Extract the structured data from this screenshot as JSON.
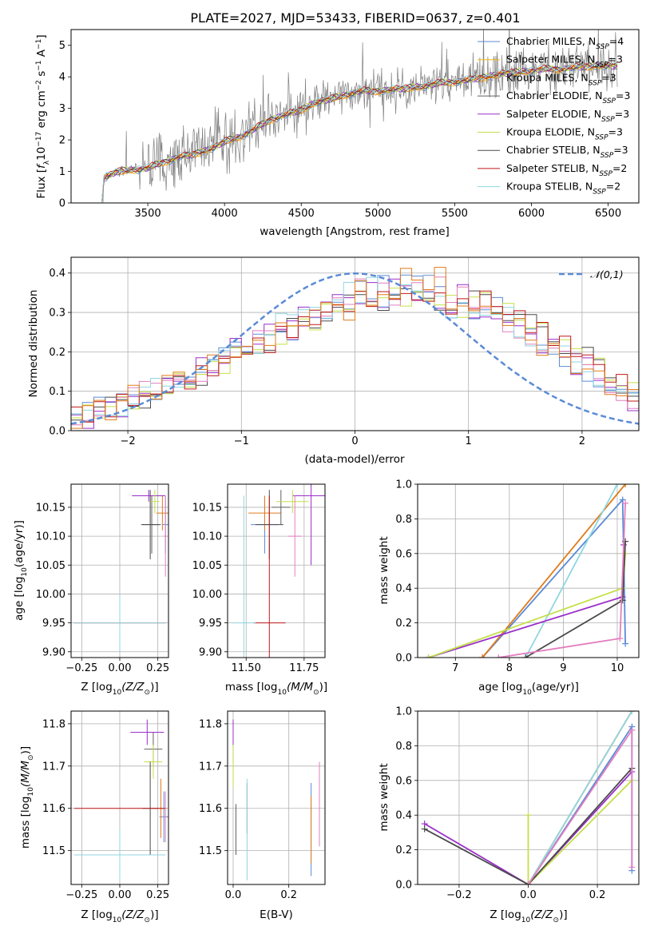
{
  "title": "PLATE=2027, MJD=53433, FIBERID=0637, z=0.401",
  "colors": {
    "chabrier_miles": "#5b8bd6",
    "salpeter_miles": "#f2b50c",
    "kroupa_miles": "#e07b1a",
    "chabrier_elodie": "#606060",
    "salpeter_elodie": "#9a2fc9",
    "kroupa_elodie": "#c4e04a",
    "chabrier_stelib": "#4a4a4a",
    "salpeter_stelib": "#c01818",
    "kroupa_stelib": "#8fd6e0",
    "normal_curve": "#5b8bd6",
    "pink": "#e27fbf",
    "data_gray": "#808080"
  },
  "chart_data": [
    {
      "id": "spectrum",
      "type": "line",
      "xlabel": "wavelength [Angstrom, rest frame]",
      "ylabel_parts": [
        "Flux [",
        "f",
        "λ",
        "10",
        "−17",
        " erg cm",
        "−2",
        " s",
        "−1",
        " A",
        "−1",
        "]"
      ],
      "xlim": [
        3000,
        6700
      ],
      "ylim": [
        0,
        5.5
      ],
      "xticks": [
        "3500",
        "4000",
        "4500",
        "5000",
        "5500",
        "6000",
        "6500"
      ],
      "yticks": [
        "0",
        "1",
        "2",
        "3",
        "4",
        "5"
      ],
      "legend_position": "right",
      "legend": [
        {
          "name": "Chabrier MILES, N",
          "sub": "SSP",
          "tail": "=4",
          "color": "#5b8bd6"
        },
        {
          "name": "Salpeter MILES, N",
          "sub": "SSP",
          "tail": "=3",
          "color": "#f2b50c"
        },
        {
          "name": "Kroupa MILES, N",
          "sub": "SSP",
          "tail": "=3",
          "color": "#e07b1a"
        },
        {
          "name": "Chabrier ELODIE, N",
          "sub": "SSP",
          "tail": "=3",
          "color": "#606060"
        },
        {
          "name": "Salpeter ELODIE, N",
          "sub": "SSP",
          "tail": "=3",
          "color": "#9a2fc9"
        },
        {
          "name": "Kroupa ELODIE, N",
          "sub": "SSP",
          "tail": "=3",
          "color": "#c4e04a"
        },
        {
          "name": "Chabrier STELIB, N",
          "sub": "SSP",
          "tail": "=3",
          "color": "#4a4a4a"
        },
        {
          "name": "Salpeter STELIB, N",
          "sub": "SSP",
          "tail": "=2",
          "color": "#c01818"
        },
        {
          "name": "Kroupa STELIB, N",
          "sub": "SSP",
          "tail": "=2",
          "color": "#8fd6e0"
        }
      ],
      "model_continuum": {
        "x": [
          3200,
          3300,
          3400,
          3500,
          3600,
          3700,
          3800,
          3900,
          3950,
          4000,
          4100,
          4200,
          4300,
          4400,
          4500,
          4600,
          4700,
          4800,
          4900,
          5000,
          5100,
          5200,
          5300,
          5400,
          5500,
          5600,
          5700,
          5800,
          5900,
          6000,
          6100,
          6200,
          6300,
          6400,
          6500
        ],
        "y": [
          0.75,
          1.0,
          1.05,
          1.1,
          1.3,
          1.45,
          1.55,
          1.7,
          1.8,
          1.95,
          2.1,
          2.35,
          2.65,
          2.8,
          2.95,
          3.2,
          3.3,
          3.45,
          3.55,
          3.55,
          3.6,
          3.65,
          3.7,
          3.8,
          3.85,
          3.9,
          4.0,
          4.1,
          4.15,
          4.2,
          4.25,
          4.25,
          4.3,
          4.35,
          4.35
        ]
      }
    },
    {
      "id": "residuals",
      "type": "histogram",
      "xlabel": "(data-model)/error",
      "ylabel": "Normed distribution",
      "xlim": [
        -2.5,
        2.5
      ],
      "ylim": [
        0,
        0.44
      ],
      "xticks": [
        "−2",
        "−1",
        "0",
        "1",
        "2"
      ],
      "yticks": [
        "0.0",
        "0.1",
        "0.2",
        "0.3",
        "0.4"
      ],
      "legend_label": "𝒩(0,1)",
      "legend_position": "top-right",
      "bins_start": -2.5,
      "bin_width": 0.1,
      "series_heights": [
        [
          0.05,
          0.04,
          0.05,
          0.06,
          0.07,
          0.08,
          0.08,
          0.09,
          0.11,
          0.12,
          0.13,
          0.14,
          0.16,
          0.17,
          0.19,
          0.2,
          0.22,
          0.22,
          0.24,
          0.26,
          0.27,
          0.28,
          0.3,
          0.31,
          0.32,
          0.33,
          0.34,
          0.33,
          0.35,
          0.34,
          0.33,
          0.34,
          0.33,
          0.32,
          0.31,
          0.33,
          0.34,
          0.32,
          0.3,
          0.29,
          0.27,
          0.25,
          0.24,
          0.22,
          0.2,
          0.19,
          0.16,
          0.14,
          0.12,
          0.1
        ],
        [
          0.03,
          0.05,
          0.06,
          0.05,
          0.08,
          0.09,
          0.1,
          0.1,
          0.12,
          0.14,
          0.15,
          0.15,
          0.17,
          0.19,
          0.2,
          0.19,
          0.23,
          0.24,
          0.26,
          0.25,
          0.29,
          0.31,
          0.3,
          0.33,
          0.3,
          0.36,
          0.31,
          0.37,
          0.33,
          0.39,
          0.4,
          0.37,
          0.39,
          0.31,
          0.34,
          0.29,
          0.3,
          0.32,
          0.27,
          0.26,
          0.24,
          0.21,
          0.2,
          0.18,
          0.17,
          0.15,
          0.13,
          0.11,
          0.1,
          0.08
        ],
        [
          0.02,
          0.03,
          0.04,
          0.06,
          0.06,
          0.07,
          0.09,
          0.11,
          0.11,
          0.13,
          0.14,
          0.16,
          0.16,
          0.18,
          0.21,
          0.22,
          0.22,
          0.25,
          0.28,
          0.27,
          0.3,
          0.33,
          0.31,
          0.34,
          0.36,
          0.3,
          0.38,
          0.33,
          0.36,
          0.38,
          0.34,
          0.37,
          0.33,
          0.3,
          0.35,
          0.31,
          0.28,
          0.27,
          0.3,
          0.25,
          0.24,
          0.22,
          0.21,
          0.19,
          0.16,
          0.16,
          0.14,
          0.12,
          0.09,
          0.07
        ]
      ],
      "normal": {
        "mu": 0,
        "sigma": 1
      }
    },
    {
      "id": "age-vs-Z",
      "type": "errorbar",
      "xlabel_parts": [
        "Z [log",
        "10",
        "(Z/Z",
        "⊙",
        ")]"
      ],
      "ylabel_parts": [
        "age  [log",
        "10",
        "(age/yr)]"
      ],
      "xlim": [
        -0.32,
        0.32
      ],
      "ylim": [
        9.89,
        10.19
      ],
      "xticks": [
        "−0.25",
        "0.00",
        "0.25"
      ],
      "yticks": [
        "9.90",
        "9.95",
        "10.00",
        "10.05",
        "10.10",
        "10.15"
      ],
      "points": [
        {
          "x": 0.3,
          "y": 10.12,
          "xerr": 0.02,
          "yerr": 0.05,
          "color": "#5b8bd6"
        },
        {
          "x": 0.28,
          "y": 10.14,
          "xerr": 0.04,
          "yerr": 0.03,
          "color": "#e07b1a"
        },
        {
          "x": 0.21,
          "y": 10.12,
          "xerr": 0.06,
          "yerr": 0.05,
          "color": "#606060"
        },
        {
          "x": 0.19,
          "y": 10.17,
          "xerr": 0.11,
          "yerr": 0.01,
          "color": "#9a2fc9"
        },
        {
          "x": 0.23,
          "y": 10.16,
          "xerr": 0.03,
          "yerr": 0.02,
          "color": "#c4e04a"
        },
        {
          "x": 0.2,
          "y": 10.12,
          "xerr": 0.06,
          "yerr": 0.06,
          "color": "#4a4a4a"
        },
        {
          "x": 0.0,
          "y": 9.95,
          "xerr": 0.3,
          "yerr": 0.0,
          "color": "#c01818"
        },
        {
          "x": 0.0,
          "y": 9.95,
          "xerr": 0.3,
          "yerr": 0.05,
          "color": "#8fd6e0"
        },
        {
          "x": 0.3,
          "y": 10.1,
          "xerr": 0.01,
          "yerr": 0.07,
          "color": "#e27fbf"
        }
      ]
    },
    {
      "id": "age-vs-mass",
      "type": "errorbar",
      "xlabel_parts": [
        "mass [log",
        "10",
        "(M/M",
        "⊙",
        ")]"
      ],
      "xlim": [
        11.42,
        11.84
      ],
      "ylim": [
        9.89,
        10.19
      ],
      "xticks": [
        "11.50",
        "11.75"
      ],
      "yticks": [
        "9.90",
        "9.95",
        "10.00",
        "10.05",
        "10.10",
        "10.15"
      ],
      "points": [
        {
          "x": 11.58,
          "y": 10.12,
          "xerr": 0.06,
          "yerr": 0.05,
          "color": "#5b8bd6"
        },
        {
          "x": 11.58,
          "y": 10.14,
          "xerr": 0.07,
          "yerr": 0.03,
          "color": "#e07b1a"
        },
        {
          "x": 11.65,
          "y": 10.15,
          "xerr": 0.04,
          "yerr": 0.03,
          "color": "#606060"
        },
        {
          "x": 11.78,
          "y": 10.17,
          "xerr": 0.08,
          "yerr": 0.12,
          "color": "#9a2fc9"
        },
        {
          "x": 11.7,
          "y": 10.16,
          "xerr": 0.07,
          "yerr": 0.02,
          "color": "#c4e04a"
        },
        {
          "x": 11.6,
          "y": 10.12,
          "xerr": 0.06,
          "yerr": 0.06,
          "color": "#4a4a4a"
        },
        {
          "x": 11.6,
          "y": 9.95,
          "xerr": 0.07,
          "yerr": 0.22,
          "color": "#c01818"
        },
        {
          "x": 11.49,
          "y": 9.95,
          "xerr": 0.05,
          "yerr": 0.22,
          "color": "#8fd6e0"
        },
        {
          "x": 11.71,
          "y": 10.1,
          "xerr": 0.03,
          "yerr": 0.07,
          "color": "#e27fbf"
        }
      ]
    },
    {
      "id": "massweight-vs-age",
      "type": "line",
      "xlabel_parts": [
        "age  [log",
        "10",
        "(age/yr)]"
      ],
      "ylabel": "mass weight",
      "xlim": [
        6.3,
        10.4
      ],
      "ylim": [
        0,
        1
      ],
      "xticks": [
        "7",
        "8",
        "9",
        "10"
      ],
      "yticks": [
        "0.0",
        "0.2",
        "0.4",
        "0.6",
        "0.8",
        "1.0"
      ],
      "series": [
        {
          "color": "#5b8bd6",
          "x": [
            7.5,
            10.1,
            10.15
          ],
          "y": [
            0.0,
            0.91,
            0.08
          ]
        },
        {
          "color": "#e07b1a",
          "x": [
            7.5,
            10.15
          ],
          "y": [
            0.0,
            1.0
          ]
        },
        {
          "color": "#8fd6e0",
          "x": [
            8.3,
            10.0
          ],
          "y": [
            0.0,
            1.0
          ]
        },
        {
          "color": "#9a2fc9",
          "x": [
            6.5,
            10.1,
            10.12
          ],
          "y": [
            0.0,
            0.35,
            0.65
          ]
        },
        {
          "color": "#c4e04a",
          "x": [
            6.5,
            10.1,
            10.15
          ],
          "y": [
            0.0,
            0.4,
            0.6
          ]
        },
        {
          "color": "#4a4a4a",
          "x": [
            8.3,
            10.1,
            10.15
          ],
          "y": [
            0.0,
            0.33,
            0.67
          ]
        },
        {
          "color": "#e27fbf",
          "x": [
            7.8,
            10.05,
            10.15
          ],
          "y": [
            0.0,
            0.11,
            0.89
          ]
        }
      ]
    },
    {
      "id": "mass-vs-Z",
      "type": "errorbar",
      "xlabel_parts": [
        "Z [log",
        "10",
        "(Z/Z",
        "⊙",
        ")]"
      ],
      "ylabel_parts": [
        "mass [log",
        "10",
        "(M/M",
        "⊙",
        ")]"
      ],
      "xlim": [
        -0.32,
        0.32
      ],
      "ylim": [
        11.42,
        11.83
      ],
      "xticks": [
        "−0.25",
        "0.00",
        "0.25"
      ],
      "yticks": [
        "11.5",
        "11.6",
        "11.7",
        "11.8"
      ],
      "points": [
        {
          "x": 0.29,
          "y": 11.58,
          "xerr": 0.03,
          "yerr": 0.06,
          "color": "#5b8bd6"
        },
        {
          "x": 0.27,
          "y": 11.6,
          "xerr": 0.04,
          "yerr": 0.07,
          "color": "#e07b1a"
        },
        {
          "x": 0.22,
          "y": 11.74,
          "xerr": 0.06,
          "yerr": 0.04,
          "color": "#606060"
        },
        {
          "x": 0.18,
          "y": 11.78,
          "xerr": 0.11,
          "yerr": 0.03,
          "color": "#9a2fc9"
        },
        {
          "x": 0.22,
          "y": 11.71,
          "xerr": 0.06,
          "yerr": 0.04,
          "color": "#c4e04a"
        },
        {
          "x": 0.2,
          "y": 11.6,
          "xerr": 0.05,
          "yerr": 0.11,
          "color": "#4a4a4a"
        },
        {
          "x": 0.0,
          "y": 11.6,
          "xerr": 0.3,
          "yerr": 0.0,
          "color": "#c01818"
        },
        {
          "x": 0.0,
          "y": 11.49,
          "xerr": 0.3,
          "yerr": 0.06,
          "color": "#8fd6e0"
        },
        {
          "x": 0.3,
          "y": 11.58,
          "xerr": 0.01,
          "yerr": 0.06,
          "color": "#e27fbf"
        }
      ]
    },
    {
      "id": "mass-vs-EBV",
      "type": "errorbar",
      "xlabel": "E(B-V)",
      "xlim": [
        -0.02,
        0.33
      ],
      "ylim": [
        11.42,
        11.83
      ],
      "xticks": [
        "0.0",
        "0.2"
      ],
      "yticks": [
        "11.5",
        "11.6",
        "11.7",
        "11.8"
      ],
      "points": [
        {
          "x": 0.28,
          "y": 11.55,
          "xerr": 0.0,
          "yerr": 0.11,
          "color": "#5b8bd6"
        },
        {
          "x": 0.28,
          "y": 11.55,
          "xerr": 0.0,
          "yerr": 0.08,
          "color": "#e07b1a"
        },
        {
          "x": 0.01,
          "y": 11.55,
          "xerr": 0.0,
          "yerr": 0.06,
          "color": "#606060"
        },
        {
          "x": 0.0,
          "y": 11.76,
          "xerr": 0.0,
          "yerr": 0.05,
          "color": "#9a2fc9"
        },
        {
          "x": 0.0,
          "y": 11.7,
          "xerr": 0.0,
          "yerr": 0.05,
          "color": "#c4e04a"
        },
        {
          "x": 0.05,
          "y": 11.6,
          "xerr": 0.0,
          "yerr": 0.06,
          "color": "#4a4a4a"
        },
        {
          "x": 0.05,
          "y": 11.55,
          "xerr": 0.0,
          "yerr": 0.12,
          "color": "#8fd6e0"
        },
        {
          "x": 0.31,
          "y": 11.61,
          "xerr": 0.0,
          "yerr": 0.1,
          "color": "#e27fbf"
        }
      ]
    },
    {
      "id": "massweight-vs-Z",
      "type": "line",
      "xlabel_parts": [
        "Z [log",
        "10",
        "(Z/Z",
        "⊙",
        ")]"
      ],
      "ylabel": "mass weight",
      "xlim": [
        -0.32,
        0.32
      ],
      "ylim": [
        0,
        1
      ],
      "xticks": [
        "−0.2",
        "0.0",
        "0.2"
      ],
      "yticks": [
        "0.0",
        "0.2",
        "0.4",
        "0.6",
        "0.8",
        "1.0"
      ],
      "series": [
        {
          "color": "#5b8bd6",
          "x": [
            0.0,
            0.3,
            0.3
          ],
          "y": [
            0.0,
            0.91,
            0.08
          ]
        },
        {
          "color": "#e07b1a",
          "x": [
            0.0,
            0.3
          ],
          "y": [
            0.0,
            1.0
          ]
        },
        {
          "color": "#8fd6e0",
          "x": [
            0.0,
            0.3
          ],
          "y": [
            0.0,
            1.0
          ]
        },
        {
          "color": "#9a2fc9",
          "x": [
            -0.3,
            0.0,
            0.3
          ],
          "y": [
            0.35,
            0.0,
            0.65
          ]
        },
        {
          "color": "#c4e04a",
          "x": [
            0.0,
            0.0,
            0.3
          ],
          "y": [
            0.4,
            0.0,
            0.6
          ]
        },
        {
          "color": "#4a4a4a",
          "x": [
            -0.3,
            0.0,
            0.3
          ],
          "y": [
            0.32,
            0.0,
            0.67
          ]
        },
        {
          "color": "#e27fbf",
          "x": [
            0.0,
            0.3,
            0.3
          ],
          "y": [
            0.0,
            0.89,
            0.1
          ]
        }
      ]
    }
  ]
}
